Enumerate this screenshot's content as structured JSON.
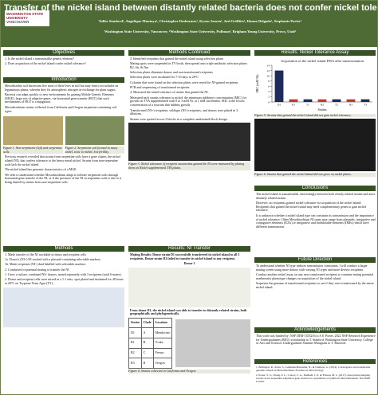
{
  "header": {
    "title": "Transfer of the nickel island between distantly related bacteria does not confer nickel tolerance",
    "logo": "WASHINGTON STATE UNIVERSITY",
    "logo_sub": "VANCOUVER",
    "authors": "Tullee Stanford¹, Angelique Montoya¹, Christopher Deshormes¹, Kyson Jensen¹, Joel Griffitts³, Hanna Delgado¹, Stephanie Porter¹",
    "affiliations": "Washington State University, Vancouver, ¹Washington State University, Pullman², Brigham Young University, Provo, Utah³"
  },
  "objectives": {
    "heading": "Objectives",
    "items": [
      "1. Is the nickel island a transmissible genetic element?",
      "2. Does acquisition of the nickel island confer nickel tolerance?"
    ]
  },
  "introduction": {
    "heading": "Introduction",
    "items": [
      "Mesorhizobia soil bacterium live most of their lives in soil but may form root nodules on leguminous plants, wherein they fix atmospheric nitrogen in exchange for plant sugars.",
      "Bacteria can adapt quickly to new environments by gaining Mobile Genetic Elements (MGE): large sets of adaptive genes, via horizontal gene transfer (HGT) that such mechanisms of HGT is conjugation.",
      "Mesorhizobium strains collected from California and Oregon serpentine containing soil types."
    ],
    "fig1": "Figure 1. Non-serpentine (left) and serpentine soils.",
    "fig2": "Figure 2. Serpentine soil formed in many nickel, toxic to nickel, low fertility.",
    "items2": [
      "Previous research revealed that strains from serpentine soils have a gene cluster, the nickel island (NI), that confers tolerance to the heavy metal nickel. Strains from non-serpentine soils lack the nickel island.",
      "The nickel island has genomic characteristics of a MGE.",
      "We seek to understand whether Mesorhizobium adapt to tolerate serpentine soils through horizontal gene transfer of the NI, or if the presence of the NI in serpentine soils is due to it being shared by strains from non-serpentine soils."
    ]
  },
  "methods": {
    "heading": "Methods",
    "items": [
      "1. Made transfer of the NI trackable in donor and recipient cells",
      "1a. Donor's (NI+) NI tracked with a plasmid containing selectable markers:",
      "1b. Made recipients (NI-) dual labelled with selectable markers:",
      "2. Conducted tri-parental mating to transfer the NI",
      "1. Grew a culture, combined NI+ donors, mated separately with 3 recipients (total 6 mates).",
      "2. Donor and recipient cells were mixed in a 1:1 ratio, spot plated and incubated for 48 hours at 28°C on Tryptone Yeast Agar (TY)."
    ]
  },
  "methods_cont": {
    "heading": "Methods Continued",
    "items": [
      "3. Identified recipients that gained the nickel island using selection plates",
      "Mating spots were suspended in TY broth, then spread onto triple antibiotic selection plates: R2, Str, & Nm",
      "Selection plates eliminate donors and non-transformed recipients",
      "Selection plates were incubated for 7-10 days at 28°C",
      "Colonies that were found on the selection plates were tested for NI-gained recipients",
      "PCR and sequencing of transformed recipients",
      "4. Measured the nickel tolerance of strains that gained the NI.",
      "Measured each strains tolerance to nickel: the minimum inhibitory concentration (MIC) for growth on TYA supplemented with 0 to 3 mM Ni, at 1 mM increments. MIC is the lowest concentration of a toxicant that inhibits growth.",
      "Transformed (NI+) recipients, wildtype (NI-) recipients, and donors were plated in 3 dilutions.",
      "Strains were spotted across 5 blocks in a complete randomized block design."
    ],
    "fig": "Figure 3. Nickel tolerance of recipient strains that gained the NI were measured by plating them on Nickel supplemented TYA plates."
  },
  "ni_transfer": {
    "heading": "Results: NI Transfer",
    "mating": "Mating Results: Donor strain D1 successfully transferred its nickel island to all 3 recipients. Donor strain D2 failed to transfer its nickel island to any recipient.",
    "donor": "Donor 1",
    "from": "From donor D1, the nickel island was able to transfer to distantly related strains, both geographically and phylogenetically.",
    "table": {
      "header": [
        "Strain",
        "Clade",
        "Location"
      ],
      "rows": [
        [
          "D1",
          "A",
          "Mendocino"
        ],
        [
          "R1",
          "B",
          "Yreka"
        ],
        [
          "R2",
          "C",
          "Fresno"
        ],
        [
          "R3",
          "B",
          "Oregon"
        ]
      ]
    },
    "fig": "Figure 4. Strains collected in California and Oregon."
  },
  "tolerance": {
    "heading": "Results: Nickel Tolerance Assay",
    "fig5": "Figure 5: Strains that gained the nickel island did not gain nickel tolerance.",
    "fig6": "Figure 6. Strains that gained the nickel island did not grow on nickel plates."
  },
  "chart_data": {
    "type": "bar",
    "title": "Acquisition of the nickel island DNA after transformation",
    "y_label": "MIC (mM Ni)",
    "x_label": "Strains",
    "categories": [
      "D1",
      "R1",
      "T1",
      "R2",
      "T2",
      "R3",
      "T3"
    ],
    "values": [
      12,
      1,
      1,
      1,
      1,
      1,
      1
    ],
    "colors": [
      "#1f2a5a",
      "#c0392b",
      "#1f2a5a",
      "#c0392b",
      "#1f2a5a",
      "#c0392b",
      "#1f2a5a"
    ],
    "ylim": [
      0,
      14
    ],
    "yticks": [
      0,
      2,
      4,
      6,
      8,
      10,
      12,
      14
    ]
  },
  "conclusions": {
    "heading": "Conclusions",
    "items": [
      "The nickel island is transmissible, interestingly between both closely related strains and more distantly related strains.",
      "However, no recipients gained nickel tolerance via acquisition of the nickel island: Recipients that gained the nickel island may need complementary genes to gain nickel tolerance.",
      "It is unknown whether a nickel island type can constrain its transmission and the importance of nickel tolerance: Other Mesorhizobium NI types may range from plasmids, integrative and conjugative elements (ICEs) or integrative and mobilizable elements (IMEs) which have different transmission."
    ]
  },
  "future": {
    "heading": "Future Direction",
    "items": [
      "To understand whether NI type induces transmission constraints, I will conduct a larger mating screen using more donors with varying NI types and more diverse recipients.",
      "Conduct another nickel assay on any new transformed recipient to continue testing potential nonlinearity phenotype changes on acquisition of the nickel island.",
      "Sequence the genome of transformed recipients to see if they were transformed by the entire nickel island."
    ]
  },
  "ack": {
    "heading": "Acknowledgements",
    "text": "This work was funded by: NSF DEB-1355216 to S.S. Porter, 2022 NSF Research Experience for Undergraduates (REU) scholarship to T. Stanford, Washington State University, College of Arts and Sciences Undergraduate Summer Minigrant to T. Stanford."
  },
  "refs": {
    "heading": "References",
    "items": [
      "1. Bellingeri, R., Paola, S., Lehmann-Bruinsma, N., & Giuliano, G. (2014). Convergence and transferable genomic islands in Mesorhizobium. Frontiers in Microbiology.",
      "2. Porter, S. S., Chang, P. L., Conow, C. A., Dunham, J. P., & Friesen, M. L. (2017). Association mapping reveals novel serpentine adaptation gene clusters in a population of symbiotic Mesorhizobium. The ISME Journal."
    ]
  }
}
